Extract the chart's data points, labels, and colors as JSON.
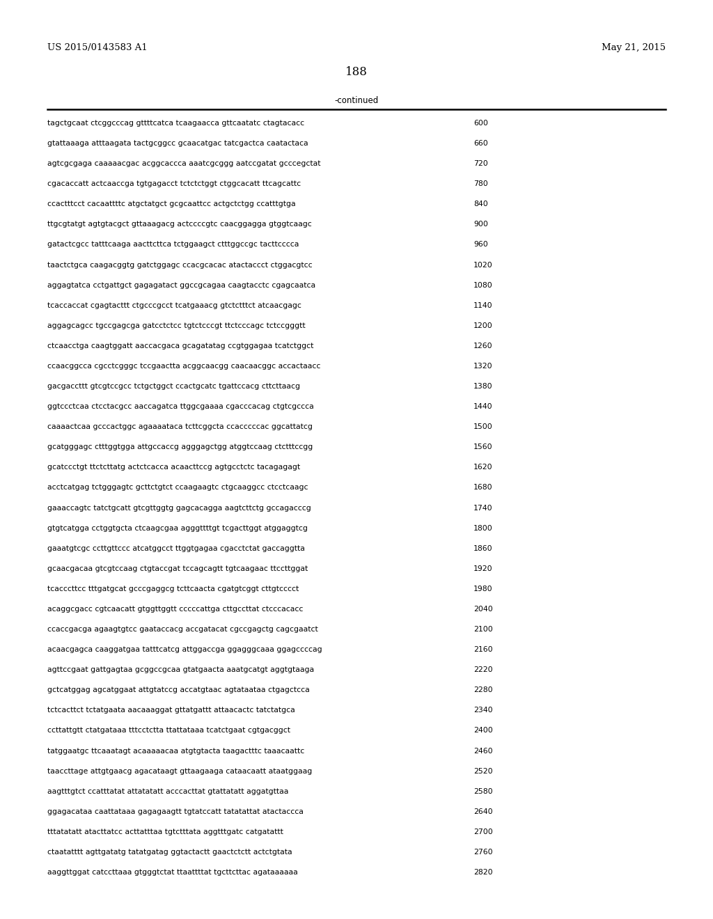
{
  "patent_number": "US 2015/0143583 A1",
  "date": "May 21, 2015",
  "page_number": "188",
  "continued_label": "-continued",
  "background_color": "#ffffff",
  "text_color": "#000000",
  "sequence_lines": [
    {
      "seq": "tagctgcaat ctcggcccag gttttcatca tcaagaacca gttcaatatc ctagtacacc",
      "num": "600"
    },
    {
      "seq": "gtattaaaga atttaagata tactgcggcc gcaacatgac tatcgactca caatactaca",
      "num": "660"
    },
    {
      "seq": "agtcgcgaga caaaaacgac acggcaccca aaatcgcggg aatccgatat gcccegctat",
      "num": "720"
    },
    {
      "seq": "cgacaccatt actcaaccga tgtgagacct tctctctggt ctggcacatt ttcagcattc",
      "num": "780"
    },
    {
      "seq": "ccactttcct cacaattttc atgctatgct gcgcaattcc actgctctgg ccatttgtga",
      "num": "840"
    },
    {
      "seq": "ttgcgtatgt agtgtacgct gttaaagacg actccccgtc caacggagga gtggtcaagc",
      "num": "900"
    },
    {
      "seq": "gatactcgcc tatttcaaga aacttcttca tctggaagct ctttggccgc tacttcccca",
      "num": "960"
    },
    {
      "seq": "taactctgca caagacggtg gatctggagc ccacgcacac atactaccct ctggacgtcc",
      "num": "1020"
    },
    {
      "seq": "aggagtatca cctgattgct gagagatact ggccgcagaa caagtacctc cgagcaatca",
      "num": "1080"
    },
    {
      "seq": "tcaccaccat cgagtacttt ctgcccgcct tcatgaaacg gtctctttct atcaacgagc",
      "num": "1140"
    },
    {
      "seq": "aggagcagcc tgccgagcga gatcctctcc tgtctcccgt ttctcccagc tctccgggtt",
      "num": "1200"
    },
    {
      "seq": "ctcaacctga caagtggatt aaccacgaca gcagatatag ccgtggagaa tcatctggct",
      "num": "1260"
    },
    {
      "seq": "ccaacggcca cgcctcgggc tccgaactta acggcaacgg caacaacggc accactaacc",
      "num": "1320"
    },
    {
      "seq": "gacgaccttt gtcgtccgcc tctgctggct ccactgcatc tgattccacg cttcttaacg",
      "num": "1380"
    },
    {
      "seq": "ggtccctcaa ctcctacgcc aaccagatca ttggcgaaaa cgacccacag ctgtcgccca",
      "num": "1440"
    },
    {
      "seq": "caaaactcaa gcccactggc agaaaataca tcttcggcta ccacccccac ggcattatcg",
      "num": "1500"
    },
    {
      "seq": "gcatgggagc ctttggtgga attgccaccg agggagctgg atggtccaag ctctttccgg",
      "num": "1560"
    },
    {
      "seq": "gcatccctgt ttctcttatg actctcacca acaacttccg agtgcctctc tacagagagt",
      "num": "1620"
    },
    {
      "seq": "acctcatgag tctgggagtc gcttctgtct ccaagaagtc ctgcaaggcc ctcctcaagc",
      "num": "1680"
    },
    {
      "seq": "gaaaccagtc tatctgcatt gtcgttggtg gagcacagga aagtcttctg gccagacccg",
      "num": "1740"
    },
    {
      "seq": "gtgtcatgga cctggtgcta ctcaagcgaa agggttttgt tcgacttggt atggaggtcg",
      "num": "1800"
    },
    {
      "seq": "gaaatgtcgc ccttgttccc atcatggcct ttggtgagaa cgacctctat gaccaggtta",
      "num": "1860"
    },
    {
      "seq": "gcaacgacaa gtcgtccaag ctgtaccgat tccagcagtt tgtcaagaac ttccttggat",
      "num": "1920"
    },
    {
      "seq": "tcacccttcc tttgatgcat gcccgaggcg tcttcaacta cgatgtcggt cttgtcccct",
      "num": "1980"
    },
    {
      "seq": "acaggcgacc cgtcaacatt gtggttggtt cccccattga cttgccttat ctcccacacc",
      "num": "2040"
    },
    {
      "seq": "ccaccgacga agaagtgtcc gaataccacg accgatacat cgccgagctg cagcgaatct",
      "num": "2100"
    },
    {
      "seq": "acaacgagca caaggatgaa tatttcatcg attggaccga ggagggcaaa ggagccccag",
      "num": "2160"
    },
    {
      "seq": "agttccgaat gattgagtaa gcggccgcaa gtatgaacta aaatgcatgt aggtgtaaga",
      "num": "2220"
    },
    {
      "seq": "gctcatggag agcatggaat attgtatccg accatgtaac agtataataa ctgagctcca",
      "num": "2280"
    },
    {
      "seq": "tctcacttct tctatgaata aacaaaggat gttatgattt attaacactc tatctatgca",
      "num": "2340"
    },
    {
      "seq": "ccttattgtt ctatgataaa tttcctctta ttattataaa tcatctgaat cgtgacggct",
      "num": "2400"
    },
    {
      "seq": "tatggaatgc ttcaaatagt acaaaaacaa atgtgtacta taagactttc taaacaattc",
      "num": "2460"
    },
    {
      "seq": "taaccttage attgtgaacg agacataagt gttaagaaga cataacaatt ataatggaag",
      "num": "2520"
    },
    {
      "seq": "aagtttgtct ccatttatat attatatatt acccacttat gtattatatt aggatgttaa",
      "num": "2580"
    },
    {
      "seq": "ggagacataa caattataaa gagagaagtt tgtatccatt tatatattat atactaccca",
      "num": "2640"
    },
    {
      "seq": "tttatatatt atacttatcc acttatttaa tgtctttata aggtttgatc catgatattt",
      "num": "2700"
    },
    {
      "seq": "ctaatatttt agttgatatg tatatgatag ggtactactt gaactctctt actctgtata",
      "num": "2760"
    },
    {
      "seq": "aaggttggat catccttaaa gtgggtctat ttaattttat tgcttcttac agataaaaaa",
      "num": "2820"
    }
  ]
}
